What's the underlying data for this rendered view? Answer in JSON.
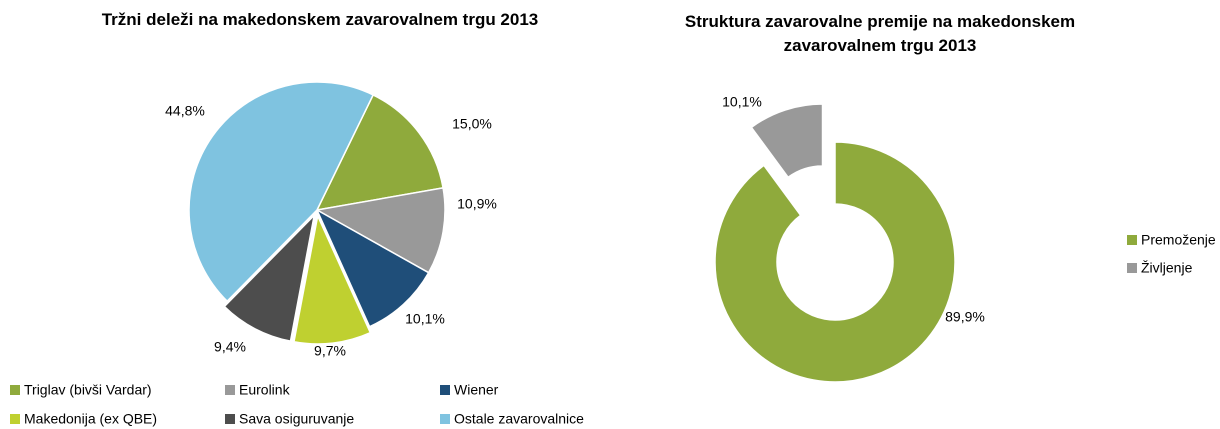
{
  "chart_data": [
    {
      "type": "pie",
      "title": "Tržni deleži na makedonskem zavarovalnem trgu 2013",
      "categories": [
        "Triglav (bivši Vardar)",
        "Eurolink",
        "Wiener",
        "Makedonija (ex QBE)",
        "Sava osiguruvanje",
        "Ostale zavarovalnice"
      ],
      "values": [
        15.0,
        10.9,
        10.1,
        9.7,
        9.4,
        44.8
      ],
      "value_labels": [
        "15,0%",
        "10,9%",
        "10,1%",
        "9,7%",
        "9,4%",
        "44,8%"
      ],
      "colors": [
        "#8faa3c",
        "#999999",
        "#1f4e79",
        "#bfd030",
        "#4d4d4d",
        "#7fc3e0"
      ],
      "legend": "bottom"
    },
    {
      "type": "donut",
      "title": "Struktura zavarovalne premije na makedonskem zavarovalnem trgu 2013",
      "categories": [
        "Premoženje",
        "Življenje"
      ],
      "values": [
        89.9,
        10.1
      ],
      "value_labels": [
        "89,9%",
        "10,1%"
      ],
      "colors": [
        "#8faa3c",
        "#999999"
      ],
      "legend": "right"
    }
  ]
}
